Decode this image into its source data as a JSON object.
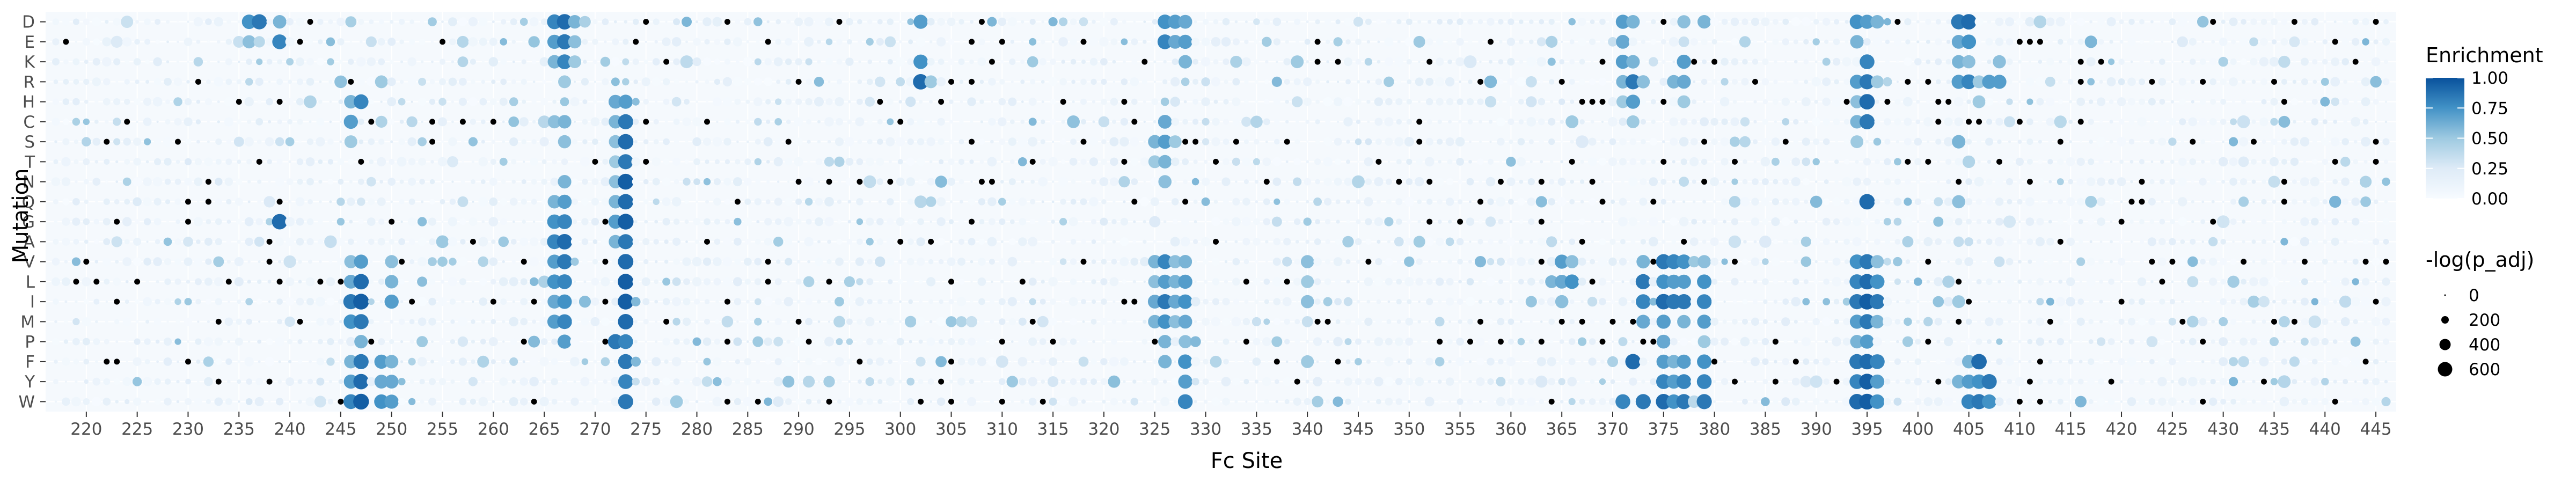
{
  "chart_data": {
    "type": "dot_heatmap",
    "xlabel": "Fc Site",
    "ylabel": "Mutation",
    "xlim": [
      216,
      447
    ],
    "x_ticks": [
      220,
      225,
      230,
      235,
      240,
      245,
      250,
      255,
      260,
      265,
      270,
      275,
      280,
      285,
      290,
      295,
      300,
      305,
      310,
      315,
      320,
      325,
      330,
      335,
      340,
      345,
      350,
      355,
      360,
      365,
      370,
      375,
      380,
      385,
      390,
      395,
      400,
      405,
      410,
      415,
      420,
      425,
      430,
      435,
      440,
      445
    ],
    "rows": [
      "D",
      "E",
      "K",
      "R",
      "H",
      "C",
      "S",
      "T",
      "N",
      "Q",
      "G",
      "A",
      "V",
      "L",
      "I",
      "M",
      "P",
      "F",
      "Y",
      "W"
    ],
    "color_scale": {
      "title": "Enrichment",
      "domain": [
        0,
        1
      ],
      "ticks": [
        "1.00",
        "0.75",
        "0.50",
        "0.25",
        "0.00"
      ],
      "colors": [
        "#f7fbff",
        "#deebf7",
        "#9ecae1",
        "#4292c6",
        "#08519c"
      ]
    },
    "size_scale": {
      "title": "-log(p_adj)",
      "labels": [
        "0",
        "200",
        "400",
        "600"
      ],
      "values": [
        0,
        200,
        400,
        600
      ],
      "color": "#000000"
    },
    "missing_color": "#000000",
    "hotspots": [
      {
        "site": 236,
        "rows": {
          "D": 0.75,
          "E": 0.55
        }
      },
      {
        "site": 237,
        "rows": {
          "D": 0.85
        }
      },
      {
        "site": 239,
        "rows": {
          "D": 0.6,
          "E": 0.8,
          "G": 0.9
        }
      },
      {
        "site": 246,
        "rows": {
          "H": 0.6,
          "C": 0.7,
          "S": 0.5,
          "V": 0.55,
          "L": 0.65,
          "I": 0.85,
          "M": 0.75,
          "F": 0.6,
          "Y": 0.7,
          "W": 0.8
        }
      },
      {
        "site": 247,
        "rows": {
          "H": 0.8,
          "V": 0.7,
          "L": 0.9,
          "I": 0.95,
          "M": 0.85,
          "P": 0.6,
          "F": 0.85,
          "Y": 0.9,
          "W": 0.95
        }
      },
      {
        "site": 249,
        "rows": {
          "R": 0.5,
          "F": 0.7,
          "Y": 0.65,
          "W": 0.75
        }
      },
      {
        "site": 250,
        "rows": {
          "V": 0.55,
          "L": 0.6,
          "I": 0.7,
          "F": 0.6,
          "Y": 0.65,
          "W": 0.7
        }
      },
      {
        "site": 266,
        "rows": {
          "D": 0.8,
          "E": 0.7,
          "K": 0.6,
          "C": 0.55,
          "Q": 0.6,
          "G": 0.75,
          "A": 0.8,
          "V": 0.7,
          "L": 0.75,
          "I": 0.65,
          "M": 0.7
        }
      },
      {
        "site": 267,
        "rows": {
          "D": 0.9,
          "E": 0.85,
          "K": 0.8,
          "R": 0.5,
          "C": 0.6,
          "S": 0.55,
          "N": 0.6,
          "Q": 0.7,
          "G": 0.8,
          "A": 0.9,
          "V": 0.85,
          "L": 0.8,
          "I": 0.75,
          "M": 0.8,
          "P": 0.7
        }
      },
      {
        "site": 268,
        "rows": {
          "D": 0.6,
          "E": 0.55,
          "K": 0.5
        }
      },
      {
        "site": 272,
        "rows": {
          "H": 0.65,
          "C": 0.6,
          "S": 0.55,
          "T": 0.5,
          "N": 0.55,
          "Q": 0.6,
          "G": 0.7,
          "A": 0.6,
          "P": 0.85
        }
      },
      {
        "site": 273,
        "rows": {
          "H": 0.7,
          "C": 0.85,
          "S": 0.9,
          "T": 0.85,
          "N": 0.95,
          "Q": 0.9,
          "G": 0.95,
          "A": 0.85,
          "V": 0.9,
          "L": 0.95,
          "I": 0.95,
          "M": 0.9,
          "P": 0.8,
          "F": 0.85,
          "Y": 0.8,
          "W": 0.85
        }
      },
      {
        "site": 296,
        "rows": {}
      },
      {
        "site": 302,
        "rows": {
          "D": 0.7,
          "K": 0.75,
          "R": 0.9
        }
      },
      {
        "site": 303,
        "rows": {
          "R": 0.5
        }
      },
      {
        "site": 325,
        "rows": {
          "S": 0.6,
          "T": 0.5,
          "V": 0.6,
          "L": 0.55,
          "I": 0.65,
          "M": 0.6
        }
      },
      {
        "site": 326,
        "rows": {
          "D": 0.75,
          "E": 0.8,
          "C": 0.65,
          "S": 0.7,
          "T": 0.6,
          "N": 0.55,
          "V": 0.8,
          "L": 0.7,
          "I": 0.85,
          "M": 0.75,
          "P": 0.6,
          "F": 0.6
        }
      },
      {
        "site": 327,
        "rows": {
          "D": 0.7,
          "E": 0.65,
          "S": 0.5,
          "V": 0.55,
          "L": 0.6,
          "I": 0.65,
          "M": 0.55
        }
      },
      {
        "site": 328,
        "rows": {
          "D": 0.65,
          "E": 0.7,
          "K": 0.6,
          "V": 0.6,
          "L": 0.7,
          "I": 0.75,
          "M": 0.65,
          "P": 0.55,
          "F": 0.75,
          "Y": 0.7,
          "W": 0.8
        }
      },
      {
        "site": 339,
        "rows": {
          "K": 0.5
        }
      },
      {
        "site": 340,
        "rows": {
          "V": 0.55,
          "L": 0.5,
          "I": 0.55,
          "F": 0.5
        }
      },
      {
        "site": 365,
        "rows": {
          "V": 0.7,
          "L": 0.65,
          "I": 0.55
        }
      },
      {
        "site": 366,
        "rows": {
          "C": 0.5,
          "V": 0.55,
          "L": 0.75
        }
      },
      {
        "site": 371,
        "rows": {
          "D": 0.7,
          "E": 0.65,
          "K": 0.7,
          "R": 0.6,
          "H": 0.5,
          "W": 0.8
        }
      },
      {
        "site": 372,
        "rows": {
          "D": 0.6,
          "K": 0.6,
          "R": 0.85,
          "H": 0.7,
          "C": 0.5,
          "F": 0.9
        }
      },
      {
        "site": 373,
        "rows": {
          "R": 0.55,
          "V": 0.6,
          "L": 0.85,
          "I": 0.8,
          "M": 0.65,
          "W": 0.85
        }
      },
      {
        "site": 375,
        "rows": {
          "V": 0.85,
          "L": 0.75,
          "I": 0.9,
          "M": 0.7,
          "P": 0.65,
          "F": 0.7,
          "Y": 0.8,
          "W": 0.9
        }
      },
      {
        "site": 376,
        "rows": {
          "R": 0.6,
          "V": 0.8,
          "L": 0.7,
          "I": 0.85,
          "F": 0.6,
          "Y": 0.7,
          "W": 0.75
        }
      },
      {
        "site": 377,
        "rows": {
          "D": 0.55,
          "K": 0.7,
          "R": 0.65,
          "H": 0.5,
          "V": 0.75,
          "L": 0.7,
          "I": 0.85,
          "M": 0.6,
          "F": 0.7,
          "Y": 0.8,
          "W": 0.85
        }
      },
      {
        "site": 379,
        "rows": {
          "D": 0.6,
          "V": 0.55,
          "L": 0.75,
          "I": 0.8,
          "M": 0.7,
          "P": 0.5,
          "F": 0.75,
          "Y": 0.8,
          "W": 0.85
        }
      },
      {
        "site": 394,
        "rows": {
          "D": 0.75,
          "E": 0.6,
          "R": 0.7,
          "H": 0.55,
          "C": 0.6,
          "S": 0.5,
          "V": 0.75,
          "L": 0.8,
          "I": 0.85,
          "M": 0.7,
          "P": 0.6,
          "F": 0.85,
          "Y": 0.8,
          "W": 0.9
        }
      },
      {
        "site": 395,
        "rows": {
          "D": 0.7,
          "K": 0.8,
          "R": 0.85,
          "H": 0.9,
          "C": 0.85,
          "Q": 0.9,
          "V": 0.85,
          "L": 0.9,
          "I": 0.95,
          "M": 0.85,
          "P": 0.7,
          "F": 0.9,
          "Y": 0.95,
          "W": 0.95
        }
      },
      {
        "site": 396,
        "rows": {
          "D": 0.6,
          "R": 0.5,
          "V": 0.55,
          "L": 0.75,
          "I": 0.85,
          "M": 0.6,
          "F": 0.8,
          "Y": 0.7,
          "W": 0.75
        }
      },
      {
        "site": 404,
        "rows": {
          "D": 0.85,
          "E": 0.65,
          "K": 0.6,
          "R": 0.7,
          "S": 0.6,
          "Q": 0.55,
          "I": 0.5,
          "Y": 0.6
        }
      },
      {
        "site": 405,
        "rows": {
          "D": 0.9,
          "E": 0.75,
          "K": 0.55,
          "R": 0.8,
          "F": 0.6,
          "Y": 0.7,
          "W": 0.8
        }
      },
      {
        "site": 406,
        "rows": {
          "R": 0.5,
          "H": 0.5,
          "F": 0.9,
          "Y": 0.75,
          "W": 0.85
        }
      },
      {
        "site": 407,
        "rows": {
          "R": 0.7,
          "Y": 0.85,
          "W": 0.75
        }
      },
      {
        "site": 408,
        "rows": {
          "K": 0.55,
          "R": 0.7
        }
      }
    ]
  }
}
